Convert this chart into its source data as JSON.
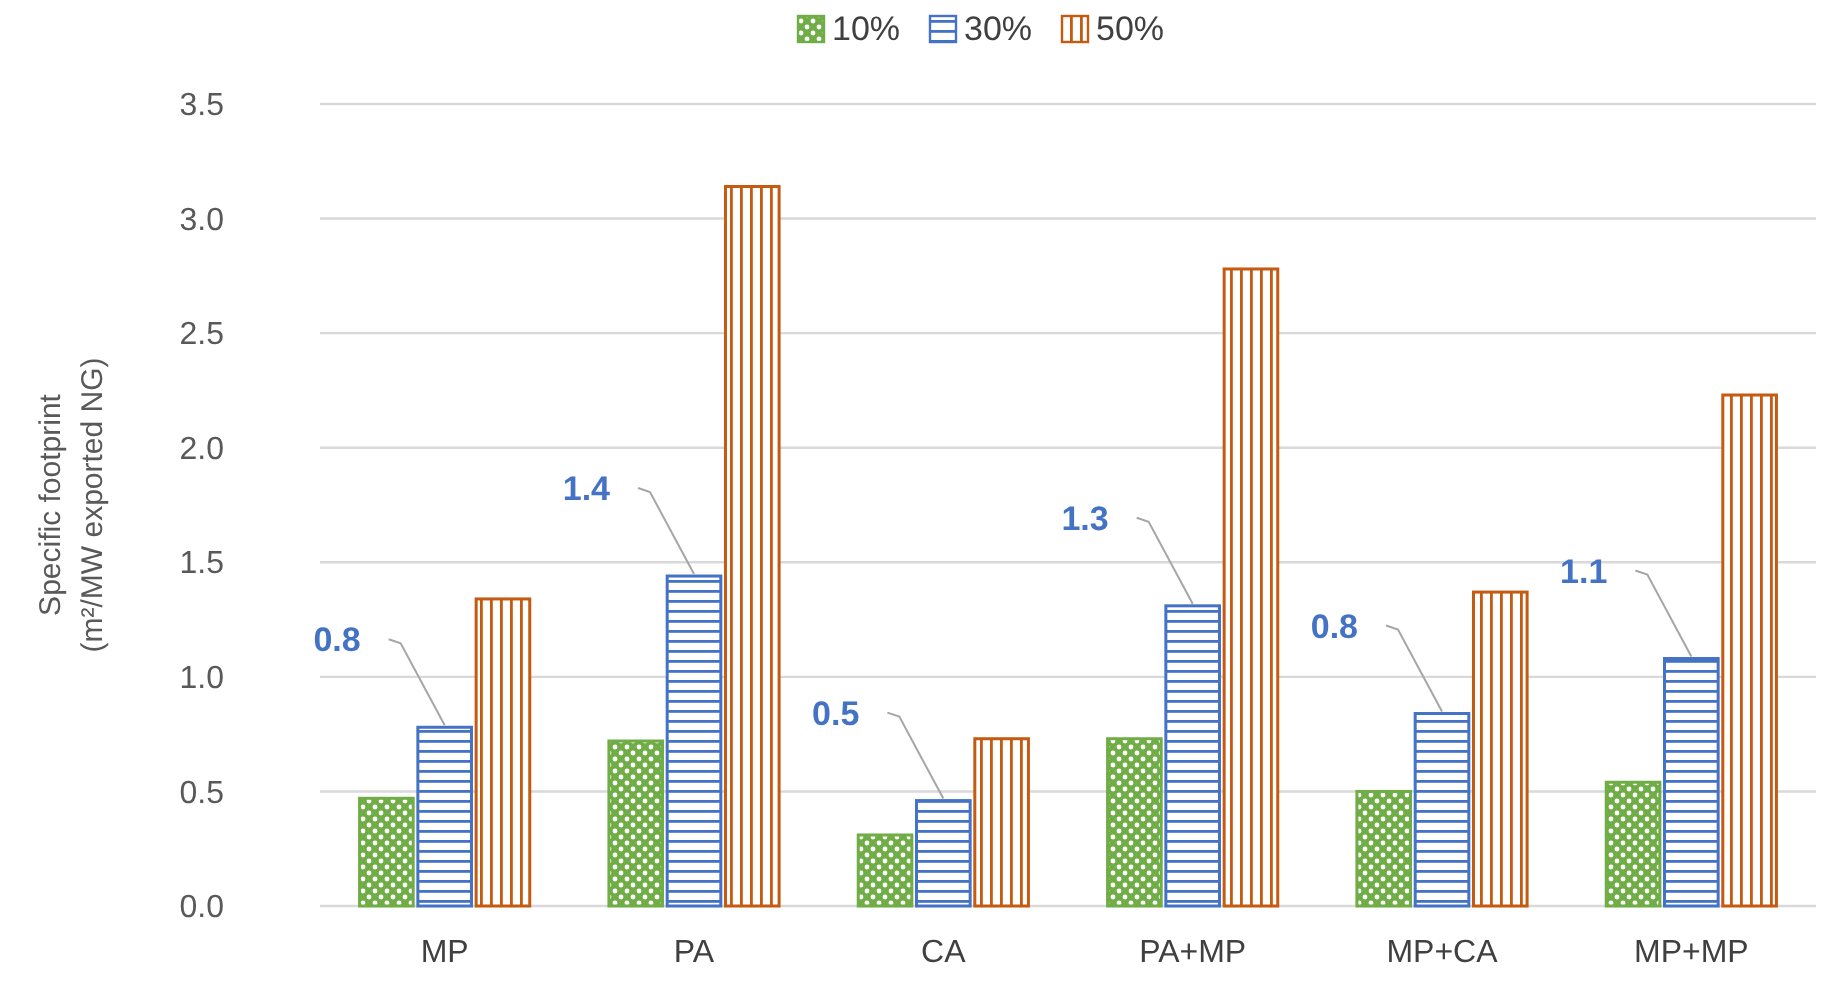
{
  "chart_data": {
    "type": "bar",
    "ylabel": "Specific footprint\n(m²/MW exported NG)",
    "categories": [
      "MP",
      "PA",
      "CA",
      "PA+MP",
      "MP+CA",
      "MP+MP"
    ],
    "series": [
      {
        "name": "10%",
        "color": "#70ad47",
        "values": [
          0.47,
          0.72,
          0.31,
          0.73,
          0.5,
          0.54
        ]
      },
      {
        "name": "30%",
        "color": "#4472c4",
        "values": [
          0.78,
          1.44,
          0.46,
          1.31,
          0.84,
          1.08
        ],
        "value_labels": [
          "0.8",
          "1.4",
          "0.5",
          "1.3",
          "0.8",
          "1.1"
        ]
      },
      {
        "name": "50%",
        "color": "#c55a11",
        "values": [
          1.34,
          3.14,
          0.73,
          2.78,
          1.37,
          2.23
        ]
      }
    ],
    "ylim": [
      0,
      3.5
    ],
    "yticks": [
      {
        "value": 0,
        "label": "0.0"
      },
      {
        "value": 0.5,
        "label": "0.5"
      },
      {
        "value": 1,
        "label": "1.0"
      },
      {
        "value": 1.5,
        "label": "1.5"
      },
      {
        "value": 2,
        "label": "2.0"
      },
      {
        "value": 2.5,
        "label": "2.5"
      },
      {
        "value": 3,
        "label": "3.0"
      },
      {
        "value": 3.5,
        "label": "3.5"
      }
    ],
    "grid": "y",
    "legend": "top"
  }
}
